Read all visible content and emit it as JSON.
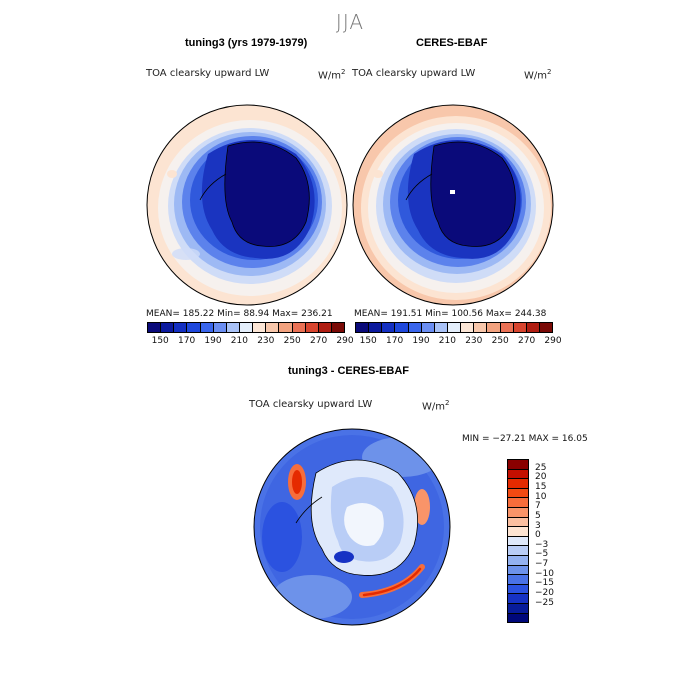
{
  "figure": {
    "season": "JJA"
  },
  "panels": [
    {
      "title": "tuning3 (yrs 1979-1979)",
      "variable": "TOA clearsky upward LW",
      "units_base": "W/m",
      "units_exp": "2",
      "stats": "MEAN= 185.22   Min=  88.94   Max= 236.21"
    },
    {
      "title": "CERES-EBAF",
      "variable": "TOA clearsky upward LW",
      "units_base": "W/m",
      "units_exp": "2",
      "stats": "MEAN= 191.51   Min= 100.56   Max= 244.38"
    }
  ],
  "top_colorbar": {
    "colors": [
      "#0a0a7a",
      "#0c1a9e",
      "#1430c2",
      "#1f48dc",
      "#3a66ec",
      "#6b8ef2",
      "#a9c2f7",
      "#e4eefb",
      "#fce6d6",
      "#f8c7ab",
      "#f2a27f",
      "#ea7155",
      "#d8452f",
      "#b01e12",
      "#7a0a06"
    ],
    "ticks": [
      "150",
      "170",
      "190",
      "210",
      "230",
      "250",
      "270",
      "290"
    ]
  },
  "diff_panel": {
    "title": "tuning3 - CERES-EBAF",
    "variable": "TOA clearsky upward LW",
    "units_base": "W/m",
    "units_exp": "2",
    "minmax": "MIN = −27.21  MAX =  16.05"
  },
  "diff_colorbar": {
    "colors": [
      "#8a0000",
      "#c40f00",
      "#e52a00",
      "#f24a12",
      "#f76d3b",
      "#f99469",
      "#fbbfa0",
      "#fde4d2",
      "#dfe9fb",
      "#b9cdf6",
      "#93b1f0",
      "#6d92ea",
      "#4a72e6",
      "#2b52e0",
      "#1632c4",
      "#081c9a",
      "#00087a"
    ],
    "ticks": [
      "25",
      "20",
      "15",
      "10",
      "7",
      "5",
      "3",
      "0",
      "−3",
      "−5",
      "−7",
      "−10",
      "−15",
      "−20",
      "−25"
    ]
  }
}
